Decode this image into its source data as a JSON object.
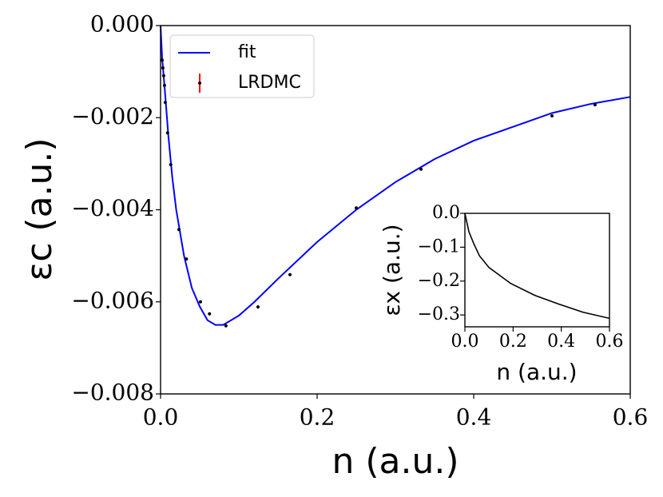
{
  "chart_data": [
    {
      "type": "line",
      "x_label": "n (a.u.)",
      "y_label": "εc (a.u.)",
      "legend": "upper left",
      "xlim": [
        0,
        0.6
      ],
      "ylim": [
        -0.008,
        0
      ],
      "xticks": [
        {
          "value": 0,
          "label": "0.0"
        },
        0.2,
        0.4,
        0.6
      ],
      "yticks": [
        {
          "value": 0,
          "label": "0.000"
        },
        {
          "value": -0.002,
          "label": "−0.002"
        },
        {
          "value": -0.004,
          "label": "−0.004"
        },
        {
          "value": -0.006,
          "label": "−0.006"
        },
        {
          "value": -0.008,
          "label": "−0.008"
        }
      ],
      "series": [
        {
          "name": "fit",
          "style": "line",
          "color": "#0000ff",
          "x": [
            0,
            0.002,
            0.005,
            0.01,
            0.015,
            0.02,
            0.03,
            0.04,
            0.05,
            0.06,
            0.07,
            0.08,
            0.09,
            0.1,
            0.12,
            0.15,
            0.2,
            0.25,
            0.3,
            0.35,
            0.4,
            0.45,
            0.5,
            0.55,
            0.6
          ],
          "values": [
            0,
            -0.0007,
            -0.0013,
            -0.0024,
            -0.0033,
            -0.004,
            -0.005,
            -0.0057,
            -0.0061,
            -0.0064,
            -0.0065,
            -0.0065,
            -0.0064,
            -0.0063,
            -0.006,
            -0.0055,
            -0.0047,
            -0.004,
            -0.0034,
            -0.0029,
            -0.0025,
            -0.0022,
            -0.0019,
            -0.0017,
            -0.00155
          ]
        },
        {
          "name": "LRDMC",
          "style": "points",
          "color": "#000000",
          "error_color": "#ff0000",
          "x": [
            0.002,
            0.003,
            0.004,
            0.005,
            0.006,
            0.009,
            0.013,
            0.0235,
            0.033,
            0.051,
            0.0625,
            0.0835,
            0.1245,
            0.1653,
            0.25,
            0.3327,
            0.5,
            0.555
          ],
          "values": [
            -0.00075,
            -0.00092,
            -0.00109,
            -0.0013,
            -0.00167,
            -0.00233,
            -0.00302,
            -0.00443,
            -0.00507,
            -0.006,
            -0.00626,
            -0.00652,
            -0.00611,
            -0.00541,
            -0.00396,
            -0.00312,
            -0.00196,
            -0.00172
          ]
        }
      ]
    },
    {
      "type": "line",
      "x_label": "n (a.u.)",
      "y_label": "εx (a.u.)",
      "xlim": [
        0,
        0.6
      ],
      "ylim": [
        -0.335,
        0
      ],
      "xticks": [
        {
          "value": 0,
          "label": "0.0"
        },
        0.2,
        0.4,
        0.6
      ],
      "yticks": [
        {
          "value": 0,
          "label": "0.0"
        },
        {
          "value": -0.1,
          "label": "−0.1"
        },
        {
          "value": -0.2,
          "label": "−0.2"
        },
        {
          "value": -0.3,
          "label": "−0.3"
        }
      ],
      "series": [
        {
          "style": "line",
          "color": "#000000",
          "x": [
            0,
            0.0166,
            0.0365,
            0.06,
            0.1,
            0.19,
            0.29,
            0.39,
            0.49,
            0.6
          ],
          "values": [
            0,
            -0.054,
            -0.089,
            -0.125,
            -0.16,
            -0.207,
            -0.242,
            -0.268,
            -0.292,
            -0.31
          ]
        }
      ]
    }
  ]
}
